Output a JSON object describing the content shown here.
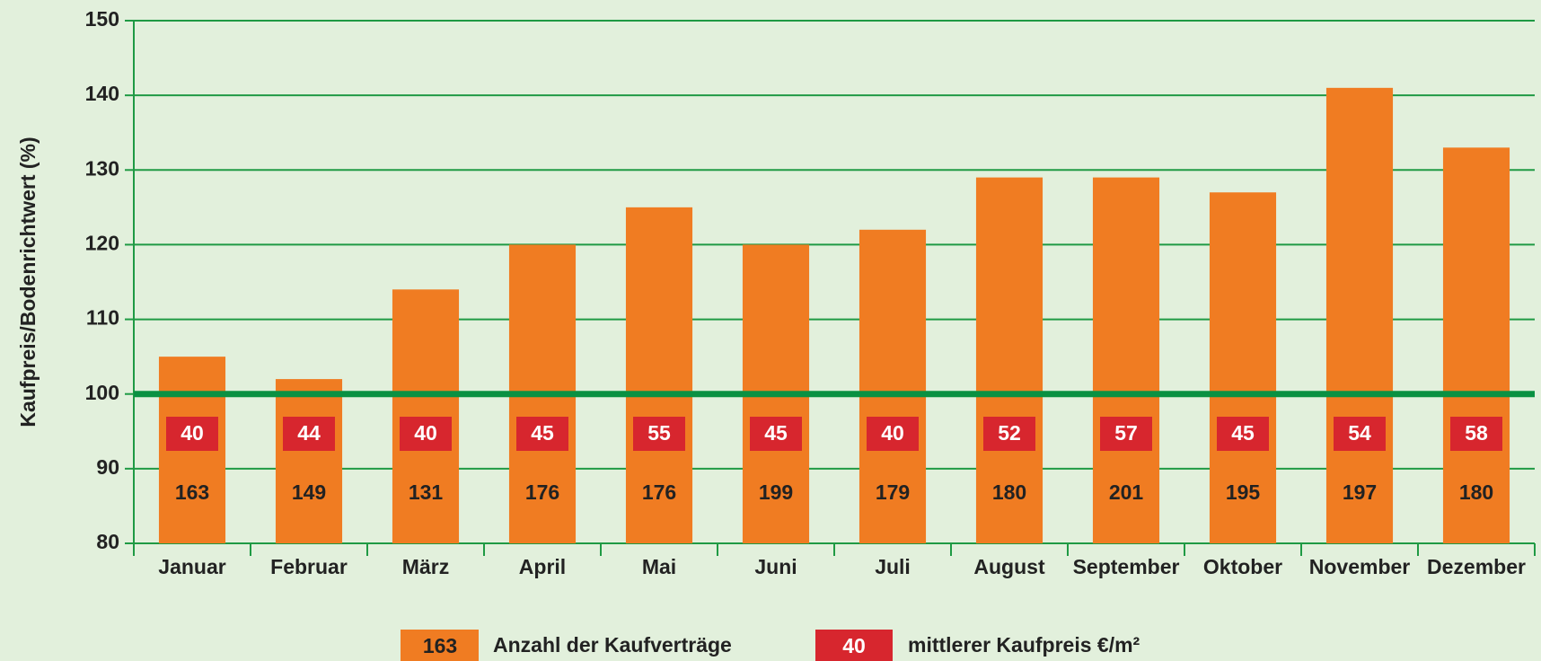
{
  "chart_data": {
    "type": "bar",
    "y_axis_label": "Kaufpreis/Bodenrichtwert (%)",
    "categories": [
      "Januar",
      "Februar",
      "März",
      "April",
      "Mai",
      "Juni",
      "Juli",
      "August",
      "September",
      "Oktober",
      "November",
      "Dezember"
    ],
    "values": [
      105,
      102,
      114,
      120,
      125,
      120,
      122,
      129,
      129,
      127,
      141,
      133
    ],
    "color": "#f07c22",
    "contracts": [
      163,
      149,
      131,
      176,
      176,
      199,
      179,
      180,
      201,
      195,
      197,
      180
    ],
    "contracts_label": "Anzahl der Kaufverträge",
    "contracts_color": "#f07c22",
    "price_per_m2": [
      40,
      44,
      40,
      45,
      55,
      45,
      40,
      52,
      57,
      45,
      54,
      58
    ],
    "price_label": "mittlerer Kaufpreis €/m²",
    "price_color": "#d7262e",
    "reference_line": 100,
    "ylim": [
      80,
      150
    ],
    "yticks": [
      80,
      90,
      100,
      110,
      120,
      130,
      140,
      150
    ],
    "grid": true
  }
}
